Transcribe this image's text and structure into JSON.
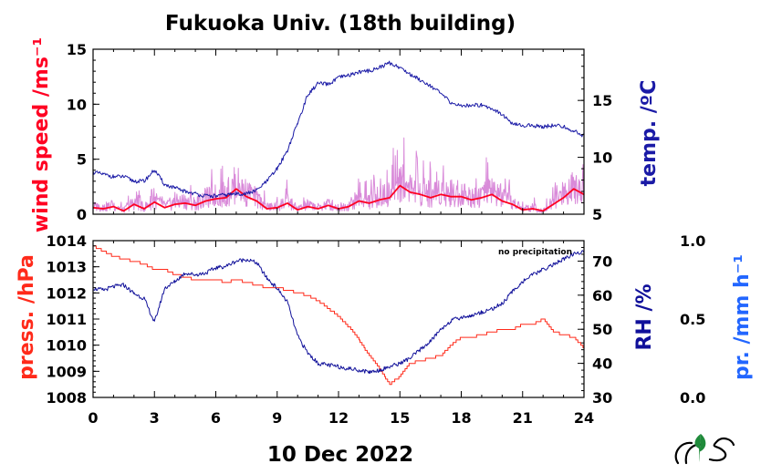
{
  "colors": {
    "wind": "#ff0022",
    "wind_raw": "#d98ad9",
    "temp": "#1a1aa6",
    "press": "#ff2a1a",
    "rh": "#10109a",
    "precip": "#2266ff",
    "axis": "#000000",
    "logo_green": "#1f8a3a"
  },
  "chart_data": {
    "title": "Fukuoka Univ. (18th building)",
    "date_label": "10 Dec 2022",
    "note": "no precipitation",
    "x_axis": {
      "range": [
        0,
        24
      ],
      "ticks": [
        0,
        3,
        6,
        9,
        12,
        15,
        18,
        21,
        24
      ],
      "unit": "hour"
    },
    "top_panel": {
      "left_axis": {
        "label": "wind speed /ms⁻¹",
        "range": [
          0,
          15
        ],
        "ticks": [
          0,
          5,
          10,
          15
        ]
      },
      "right_axis": {
        "label": "temp. /ºC",
        "range": [
          5,
          19.5
        ],
        "ticks": [
          5,
          10,
          15
        ]
      },
      "series": [
        {
          "key": "wind",
          "axis": "left",
          "type": "line",
          "x": [
            0,
            0.5,
            1,
            1.5,
            2,
            2.5,
            3,
            3.5,
            4,
            4.5,
            5,
            5.5,
            6,
            6.5,
            7,
            7.5,
            8,
            8.5,
            9,
            9.5,
            10,
            10.5,
            11,
            11.5,
            12,
            12.5,
            13,
            13.5,
            14,
            14.5,
            15,
            15.5,
            16,
            16.5,
            17,
            17.5,
            18,
            18.5,
            19,
            19.5,
            20,
            20.5,
            21,
            21.5,
            22,
            22.5,
            23,
            23.5,
            24
          ],
          "y": [
            0.6,
            0.5,
            0.7,
            0.3,
            0.9,
            0.5,
            1.1,
            0.6,
            0.9,
            1.0,
            0.8,
            1.2,
            1.4,
            1.5,
            2.3,
            1.6,
            1.2,
            0.5,
            0.6,
            1.0,
            0.4,
            0.7,
            0.5,
            0.8,
            0.5,
            0.7,
            1.2,
            1.0,
            1.3,
            1.5,
            2.6,
            2.0,
            1.8,
            1.5,
            1.8,
            1.6,
            1.6,
            1.3,
            1.5,
            1.8,
            1.2,
            0.9,
            0.4,
            0.5,
            0.3,
            0.9,
            1.5,
            2.3,
            1.8
          ]
        },
        {
          "key": "temp",
          "axis": "right",
          "type": "line",
          "x": [
            0,
            0.5,
            1,
            1.5,
            2,
            2.5,
            3,
            3.5,
            4,
            4.5,
            5,
            5.5,
            6,
            6.5,
            7,
            7.5,
            8,
            8.5,
            9,
            9.5,
            10,
            10.5,
            11,
            11.5,
            12,
            12.5,
            13,
            13.5,
            14,
            14.5,
            15,
            15.5,
            16,
            16.5,
            17,
            17.5,
            18,
            18.5,
            19,
            19.5,
            20,
            20.5,
            21,
            21.5,
            22,
            22.5,
            23,
            23.5,
            24
          ],
          "y": [
            8.7,
            8.5,
            8.3,
            8.3,
            7.9,
            7.9,
            8.9,
            7.6,
            7.3,
            7.0,
            6.8,
            6.6,
            6.6,
            6.7,
            6.8,
            6.8,
            7.1,
            7.9,
            9.0,
            10.6,
            13.0,
            15.5,
            16.5,
            16.4,
            17.0,
            17.2,
            17.5,
            17.6,
            17.9,
            18.3,
            17.9,
            17.3,
            16.8,
            16.3,
            15.6,
            14.8,
            14.5,
            14.6,
            14.6,
            14.3,
            13.8,
            12.9,
            12.8,
            12.8,
            12.7,
            12.8,
            12.7,
            12.3,
            11.9
          ]
        }
      ]
    },
    "bottom_panel": {
      "left_axis": {
        "label": "press. /hPa",
        "range": [
          1008,
          1014
        ],
        "ticks": [
          1008,
          1009,
          1010,
          1011,
          1012,
          1013,
          1014
        ]
      },
      "right_axis": {
        "label": "RH /%",
        "range": [
          30,
          76
        ],
        "ticks": [
          30,
          40,
          50,
          60,
          70
        ]
      },
      "far_right_axis": {
        "label": "pr. /mm h⁻¹",
        "range": [
          0.0,
          1.0
        ],
        "ticks": [
          "0.0",
          "0.5",
          "1.0"
        ]
      },
      "series": [
        {
          "key": "press",
          "axis": "left",
          "type": "step",
          "x": [
            0,
            0.5,
            1,
            1.5,
            2,
            2.5,
            3,
            3.5,
            4,
            4.5,
            5,
            5.5,
            6,
            6.5,
            7,
            7.5,
            8,
            8.5,
            9,
            9.5,
            10,
            10.5,
            11,
            11.5,
            12,
            12.5,
            13,
            13.5,
            14,
            14.5,
            15,
            15.5,
            16,
            16.5,
            17,
            17.5,
            18,
            18.5,
            19,
            19.5,
            20,
            20.5,
            21,
            21.5,
            22,
            22.5,
            23,
            23.5,
            24
          ],
          "y": [
            1013.8,
            1013.6,
            1013.4,
            1013.3,
            1013.2,
            1013.1,
            1012.9,
            1012.9,
            1012.7,
            1012.6,
            1012.5,
            1012.5,
            1012.5,
            1012.4,
            1012.5,
            1012.4,
            1012.3,
            1012.2,
            1012.2,
            1012.1,
            1012.0,
            1011.9,
            1011.7,
            1011.4,
            1011.1,
            1010.7,
            1010.2,
            1009.6,
            1009.1,
            1008.5,
            1008.8,
            1009.3,
            1009.4,
            1009.5,
            1009.6,
            1010.0,
            1010.3,
            1010.3,
            1010.4,
            1010.5,
            1010.6,
            1010.6,
            1010.8,
            1010.8,
            1011.0,
            1010.5,
            1010.4,
            1010.3,
            1009.9
          ]
        },
        {
          "key": "rh",
          "axis": "right",
          "type": "line",
          "x": [
            0,
            0.5,
            1,
            1.5,
            2,
            2.5,
            3,
            3.5,
            4,
            4.5,
            5,
            5.5,
            6,
            6.5,
            7,
            7.5,
            8,
            8.5,
            9,
            9.5,
            10,
            10.5,
            11,
            11.5,
            12,
            12.5,
            13,
            13.5,
            14,
            14.5,
            15,
            15.5,
            16,
            16.5,
            17,
            17.5,
            18,
            18.5,
            19,
            19.5,
            20,
            20.5,
            21,
            21.5,
            22,
            22.5,
            23,
            23.5,
            24
          ],
          "y": [
            62.0,
            61.5,
            62.5,
            63.0,
            60.5,
            59.0,
            52.0,
            62.0,
            64.0,
            66.5,
            66.0,
            66.5,
            68.0,
            68.5,
            70.0,
            70.5,
            69.5,
            65.0,
            62.0,
            58.0,
            48.0,
            43.0,
            40.0,
            39.5,
            39.0,
            38.5,
            38.0,
            37.5,
            38.0,
            39.0,
            40.0,
            41.5,
            44.0,
            46.5,
            50.0,
            52.5,
            53.5,
            54.0,
            55.0,
            56.0,
            57.5,
            61.0,
            64.0,
            66.0,
            67.5,
            69.0,
            70.5,
            72.0,
            73.0
          ]
        },
        {
          "key": "precip",
          "axis": "far_right",
          "type": "bar",
          "x": [],
          "y": []
        }
      ]
    }
  }
}
